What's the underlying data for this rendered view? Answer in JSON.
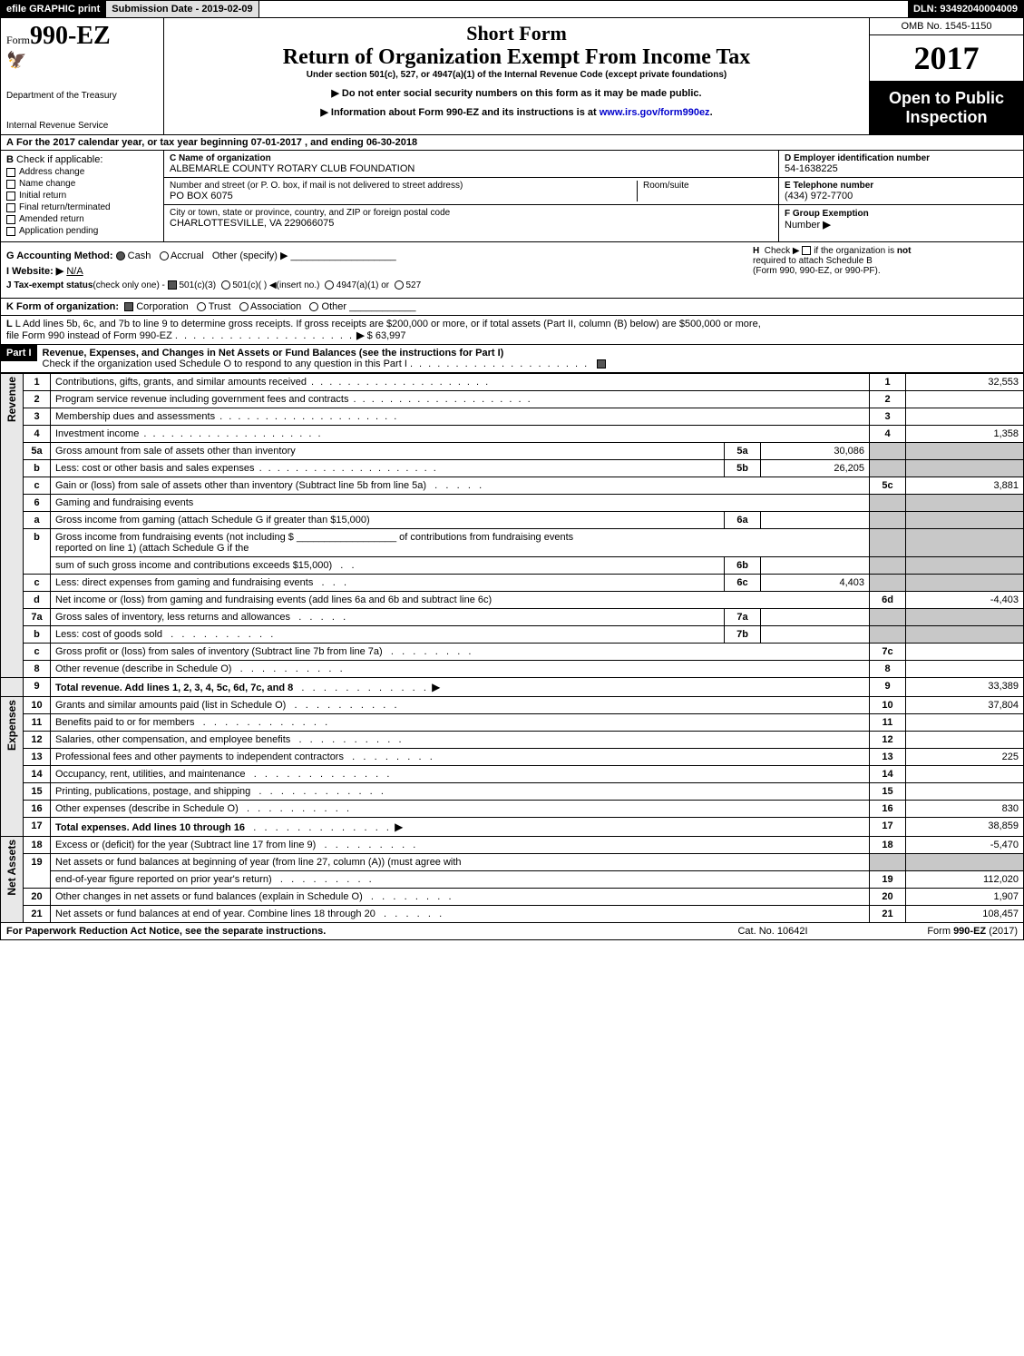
{
  "top": {
    "efile": "efile GRAPHIC print",
    "submission": "Submission Date - 2019-02-09",
    "dln": "DLN: 93492040004009"
  },
  "header": {
    "form_prefix": "Form",
    "form_number": "990-EZ",
    "short_form": "Short Form",
    "title": "Return of Organization Exempt From Income Tax",
    "under": "Under section 501(c), 527, or 4947(a)(1) of the Internal Revenue Code (except private foundations)",
    "notice1": "▶ Do not enter social security numbers on this form as it may be made public.",
    "notice2_prefix": "▶ Information about Form 990-EZ and its instructions is at ",
    "notice2_link": "www.irs.gov/form990ez",
    "notice2_suffix": ".",
    "dept1": "Department of the Treasury",
    "dept2": "Internal Revenue Service",
    "omb": "OMB No. 1545-1150",
    "year": "2017",
    "open_line1": "Open to Public",
    "open_line2": "Inspection"
  },
  "line_a": {
    "a_label": "A",
    "text_pre": "For the 2017 calendar year, or tax year beginning ",
    "begin": "07-01-2017",
    "mid": ", and ending ",
    "end": "06-30-2018"
  },
  "b": {
    "label": "B",
    "head": "Check if applicable:",
    "items": [
      "Address change",
      "Name change",
      "Initial return",
      "Final return/terminated",
      "Amended return",
      "Application pending"
    ]
  },
  "c": {
    "name_label": "C Name of organization",
    "name": "ALBEMARLE COUNTY ROTARY CLUB FOUNDATION",
    "street_label": "Number and street (or P. O. box, if mail is not delivered to street address)",
    "street": "PO BOX 6075",
    "room_label": "Room/suite",
    "city_label": "City or town, state or province, country, and ZIP or foreign postal code",
    "city": "CHARLOTTESVILLE, VA  229066075"
  },
  "d": {
    "label": "D Employer identification number",
    "value": "54-1638225"
  },
  "e": {
    "label": "E Telephone number",
    "value": "(434) 972-7700"
  },
  "f": {
    "label": "F Group Exemption",
    "label2": "Number",
    "arrow": "▶"
  },
  "g": {
    "label": "G Accounting Method:",
    "cash": "Cash",
    "accrual": "Accrual",
    "other": "Other (specify) ▶"
  },
  "h": {
    "label": "H",
    "text1": "Check ▶",
    "text2": "if the organization is",
    "not": "not",
    "text3": "required to attach Schedule B",
    "text4": "(Form 990, 990-EZ, or 990-PF)."
  },
  "i": {
    "label": "I Website: ▶",
    "value": "N/A"
  },
  "j": {
    "label": "J Tax-exempt status",
    "note": "(check only one) -",
    "opt1": "501(c)(3)",
    "opt2": "501(c)(  )",
    "opt2_note": "◀(insert no.)",
    "opt3": "4947(a)(1) or",
    "opt4": "527"
  },
  "k": {
    "label": "K Form of organization:",
    "corp": "Corporation",
    "trust": "Trust",
    "assoc": "Association",
    "other": "Other"
  },
  "l": {
    "text1": "L Add lines 5b, 6c, and 7b to line 9 to determine gross receipts. If gross receipts are $200,000 or more, or if total assets (Part II, column (B) below) are $500,000 or more,",
    "text2": "file Form 990 instead of Form 990-EZ",
    "arrow": "▶",
    "amount": "$ 63,997"
  },
  "part1": {
    "label": "Part I",
    "title": "Revenue, Expenses, and Changes in Net Assets or Fund Balances (see the instructions for Part I)",
    "check_line": "Check if the organization used Schedule O to respond to any question in this Part I"
  },
  "vlabels": {
    "revenue": "Revenue",
    "expenses": "Expenses",
    "netassets": "Net Assets"
  },
  "lines": {
    "1": {
      "desc": "Contributions, gifts, grants, and similar amounts received",
      "amt": "32,553"
    },
    "2": {
      "desc": "Program service revenue including government fees and contracts",
      "amt": ""
    },
    "3": {
      "desc": "Membership dues and assessments",
      "amt": ""
    },
    "4": {
      "desc": "Investment income",
      "amt": "1,358"
    },
    "5a": {
      "desc": "Gross amount from sale of assets other than inventory",
      "sub": "30,086"
    },
    "5b": {
      "desc": "Less: cost or other basis and sales expenses",
      "sub": "26,205"
    },
    "5c": {
      "desc": "Gain or (loss) from sale of assets other than inventory (Subtract line 5b from line 5a)",
      "amt": "3,881"
    },
    "6": {
      "desc": "Gaming and fundraising events"
    },
    "6a": {
      "desc": "Gross income from gaming (attach Schedule G if greater than $15,000)",
      "sub": ""
    },
    "6b": {
      "desc_pre": "Gross income from fundraising events (not including $ ",
      "desc_mid": " of contributions from fundraising events",
      "desc2": "reported on line 1) (attach Schedule G if the",
      "desc3": "sum of such gross income and contributions exceeds $15,000)",
      "sub": ""
    },
    "6c": {
      "desc": "Less: direct expenses from gaming and fundraising events",
      "sub": "4,403"
    },
    "6d": {
      "desc": "Net income or (loss) from gaming and fundraising events (add lines 6a and 6b and subtract line 6c)",
      "amt": "-4,403"
    },
    "7a": {
      "desc": "Gross sales of inventory, less returns and allowances",
      "sub": ""
    },
    "7b": {
      "desc": "Less: cost of goods sold",
      "sub": ""
    },
    "7c": {
      "desc": "Gross profit or (loss) from sales of inventory (Subtract line 7b from line 7a)",
      "amt": ""
    },
    "8": {
      "desc": "Other revenue (describe in Schedule O)",
      "amt": ""
    },
    "9": {
      "desc": "Total revenue. Add lines 1, 2, 3, 4, 5c, 6d, 7c, and 8",
      "amt": "33,389"
    },
    "10": {
      "desc": "Grants and similar amounts paid (list in Schedule O)",
      "amt": "37,804"
    },
    "11": {
      "desc": "Benefits paid to or for members",
      "amt": ""
    },
    "12": {
      "desc": "Salaries, other compensation, and employee benefits",
      "amt": ""
    },
    "13": {
      "desc": "Professional fees and other payments to independent contractors",
      "amt": "225"
    },
    "14": {
      "desc": "Occupancy, rent, utilities, and maintenance",
      "amt": ""
    },
    "15": {
      "desc": "Printing, publications, postage, and shipping",
      "amt": ""
    },
    "16": {
      "desc": "Other expenses (describe in Schedule O)",
      "amt": "830"
    },
    "17": {
      "desc": "Total expenses. Add lines 10 through 16",
      "amt": "38,859"
    },
    "18": {
      "desc": "Excess or (deficit) for the year (Subtract line 17 from line 9)",
      "amt": "-5,470"
    },
    "19": {
      "desc1": "Net assets or fund balances at beginning of year (from line 27, column (A)) (must agree with",
      "desc2": "end-of-year figure reported on prior year's return)",
      "amt": "112,020"
    },
    "20": {
      "desc": "Other changes in net assets or fund balances (explain in Schedule O)",
      "amt": "1,907"
    },
    "21": {
      "desc": "Net assets or fund balances at end of year. Combine lines 18 through 20",
      "amt": "108,457"
    }
  },
  "footer": {
    "left": "For Paperwork Reduction Act Notice, see the separate instructions.",
    "mid": "Cat. No. 10642I",
    "right_pre": "Form ",
    "right_form": "990-EZ",
    "right_post": " (2017)"
  },
  "colors": {
    "black": "#000000",
    "white": "#ffffff",
    "shade": "#c8c8c8",
    "lightgray": "#e0e0e0",
    "link": "#0000cc"
  }
}
